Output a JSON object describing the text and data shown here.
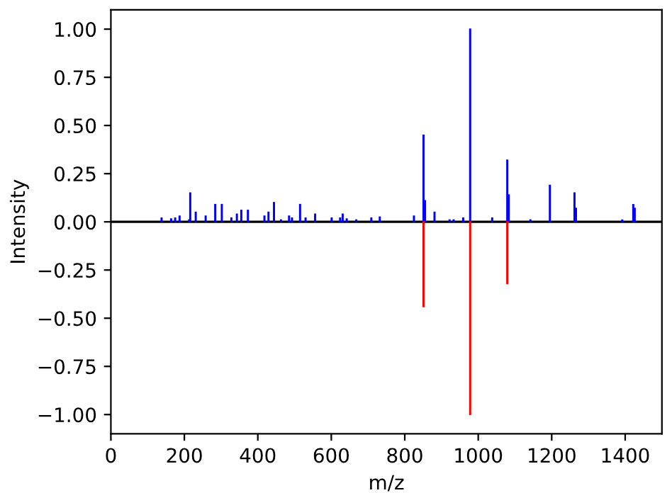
{
  "chart_data": {
    "type": "bar",
    "xlabel": "m/z",
    "ylabel": "Intensity",
    "xlim": [
      0,
      1500
    ],
    "xticks": [
      0,
      200,
      400,
      600,
      800,
      1000,
      1200,
      1400
    ],
    "ylim": [
      -1.1,
      1.1
    ],
    "yticks": [
      {
        "value": -1.0,
        "label": "−1.00"
      },
      {
        "value": -0.75,
        "label": "−0.75"
      },
      {
        "value": -0.5,
        "label": "−0.50"
      },
      {
        "value": -0.25,
        "label": "−0.25"
      },
      {
        "value": 0.0,
        "label": "0.00"
      },
      {
        "value": 0.25,
        "label": "0.25"
      },
      {
        "value": 0.5,
        "label": "0.50"
      },
      {
        "value": 0.75,
        "label": "0.75"
      },
      {
        "value": 1.0,
        "label": "1.00"
      }
    ],
    "series": [
      {
        "color": "#0000ff",
        "x": [
          138,
          164,
          175,
          187,
          213,
          216,
          231,
          258,
          284,
          302,
          328,
          343,
          355,
          373,
          418,
          429,
          444,
          463,
          485,
          493,
          515,
          530,
          556,
          601,
          624,
          631,
          642,
          668,
          709,
          732,
          825,
          851,
          855,
          881,
          922,
          933,
          959,
          978,
          1038,
          1079,
          1083,
          1142,
          1195,
          1262,
          1266,
          1392,
          1422,
          1426
        ],
        "values": [
          0.02,
          0.015,
          0.02,
          0.03,
          0.01,
          0.15,
          0.05,
          0.03,
          0.09,
          0.09,
          0.02,
          0.04,
          0.06,
          0.06,
          0.03,
          0.05,
          0.1,
          0.01,
          0.03,
          0.02,
          0.09,
          0.02,
          0.04,
          0.02,
          0.02,
          0.04,
          0.015,
          0.01,
          0.02,
          0.025,
          0.03,
          0.45,
          0.11,
          0.05,
          0.01,
          0.01,
          0.02,
          1.0,
          0.02,
          0.32,
          0.14,
          0.01,
          0.19,
          0.15,
          0.07,
          0.01,
          0.09,
          0.07
        ]
      },
      {
        "color": "#ff0000",
        "x": [
          851,
          978,
          1079
        ],
        "values": [
          -0.44,
          -1.0,
          -0.32
        ]
      }
    ],
    "ref_lines": [
      {
        "axis": "y",
        "value": 0.0,
        "color": "#000000"
      }
    ],
    "grid": false,
    "legend": false
  }
}
